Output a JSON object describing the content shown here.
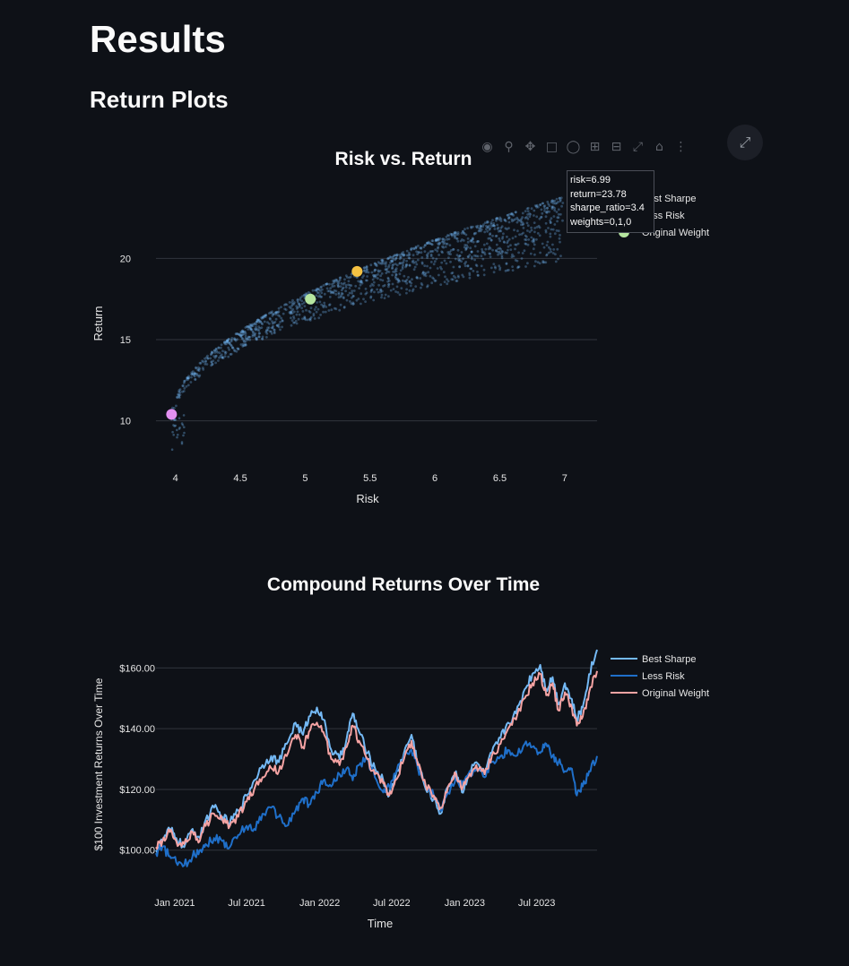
{
  "page": {
    "title": "Results",
    "subtitle": "Return Plots"
  },
  "modebar": {
    "icons": [
      "camera-icon",
      "zoom-icon",
      "pan-icon",
      "box-select-icon",
      "lasso-icon",
      "zoom-in-icon",
      "zoom-out-icon",
      "autoscale-icon",
      "home-icon",
      "plotly-logo-icon"
    ],
    "fullscreen_icon": "fullscreen-icon"
  },
  "tooltip": {
    "lines": [
      "risk=6.99",
      "return=23.78",
      "sharpe_ratio=3.4",
      "weights=0,1,0"
    ]
  },
  "chart_data": [
    {
      "type": "scatter",
      "title": "Risk vs. Return",
      "xlabel": "Risk",
      "ylabel": "Return",
      "xlim": [
        3.85,
        7.25
      ],
      "ylim": [
        7.5,
        24.6
      ],
      "xticks": [
        4,
        4.5,
        5,
        5.5,
        6,
        6.5,
        7
      ],
      "xtick_labels": [
        "4",
        "4.5",
        "5",
        "5.5",
        "6",
        "6.5",
        "7"
      ],
      "yticks": [
        10,
        15,
        20
      ],
      "ytick_labels": [
        "10",
        "15",
        "20"
      ],
      "grid": "horizontal",
      "legend_position": "top-right",
      "cloud_color": "#74b9f5",
      "cloud_description_points": {
        "frontier": [
          [
            3.98,
            10.4
          ],
          [
            4.1,
            12.3
          ],
          [
            4.3,
            13.8
          ],
          [
            4.6,
            15.3
          ],
          [
            5.0,
            17.3
          ],
          [
            5.4,
            19.2
          ],
          [
            5.8,
            20.6
          ],
          [
            6.2,
            21.7
          ],
          [
            6.6,
            22.9
          ],
          [
            6.99,
            23.78
          ]
        ]
      },
      "series": [
        {
          "name": "Best Sharpe",
          "color": "#f5c242",
          "points": [
            [
              5.4,
              19.2
            ]
          ]
        },
        {
          "name": "Less Risk",
          "color": "#e28ff0",
          "points": [
            [
              3.97,
              10.4
            ]
          ]
        },
        {
          "name": "Original Weight",
          "color": "#b6e6a0",
          "points": [
            [
              5.04,
              17.5
            ]
          ]
        }
      ]
    },
    {
      "type": "line",
      "title": "Compound Returns Over Time",
      "xlabel": "Time",
      "ylabel": "$100 Investment Returns Over Time",
      "x_range": [
        "2020-11-15",
        "2023-11-30"
      ],
      "xtick_labels": [
        "Jan 2021",
        "Jul 2021",
        "Jan 2022",
        "Jul 2022",
        "Jan 2023",
        "Jul 2023"
      ],
      "xtick_dates": [
        "2021-01-01",
        "2021-07-01",
        "2022-01-01",
        "2022-07-01",
        "2023-01-01",
        "2023-07-01"
      ],
      "ylim": [
        89,
        167.5
      ],
      "yticks": [
        100,
        120,
        140,
        160
      ],
      "ytick_labels": [
        "$100.00",
        "$120.00",
        "$140.00",
        "$160.00"
      ],
      "grid": "horizontal",
      "legend_position": "top-right",
      "series": [
        {
          "name": "Best Sharpe",
          "color": "#74b9f5",
          "points": [
            [
              "2020-11-15",
              100
            ],
            [
              "2020-12-01",
              103
            ],
            [
              "2020-12-20",
              107
            ],
            [
              "2021-01-05",
              104
            ],
            [
              "2021-01-25",
              101
            ],
            [
              "2021-02-15",
              107
            ],
            [
              "2021-03-05",
              104
            ],
            [
              "2021-03-20",
              110
            ],
            [
              "2021-04-10",
              114
            ],
            [
              "2021-05-01",
              111
            ],
            [
              "2021-05-20",
              109
            ],
            [
              "2021-06-10",
              113
            ],
            [
              "2021-07-01",
              118
            ],
            [
              "2021-07-20",
              123
            ],
            [
              "2021-08-10",
              128
            ],
            [
              "2021-09-01",
              131
            ],
            [
              "2021-09-20",
              129
            ],
            [
              "2021-10-10",
              135
            ],
            [
              "2021-11-01",
              142
            ],
            [
              "2021-11-20",
              138
            ],
            [
              "2021-12-05",
              144
            ],
            [
              "2021-12-25",
              147
            ],
            [
              "2022-01-10",
              143
            ],
            [
              "2022-01-30",
              133
            ],
            [
              "2022-02-20",
              130
            ],
            [
              "2022-03-10",
              137
            ],
            [
              "2022-03-25",
              145
            ],
            [
              "2022-04-10",
              139
            ],
            [
              "2022-05-01",
              132
            ],
            [
              "2022-05-20",
              127
            ],
            [
              "2022-06-10",
              123
            ],
            [
              "2022-06-25",
              118
            ],
            [
              "2022-07-10",
              124
            ],
            [
              "2022-08-01",
              132
            ],
            [
              "2022-08-20",
              138
            ],
            [
              "2022-09-05",
              129
            ],
            [
              "2022-09-25",
              120
            ],
            [
              "2022-10-15",
              117
            ],
            [
              "2022-11-01",
              112
            ],
            [
              "2022-11-20",
              121
            ],
            [
              "2022-12-10",
              126
            ],
            [
              "2022-12-25",
              119
            ],
            [
              "2023-01-10",
              125
            ],
            [
              "2023-01-30",
              129
            ],
            [
              "2023-02-20",
              125
            ],
            [
              "2023-03-10",
              132
            ],
            [
              "2023-04-01",
              137
            ],
            [
              "2023-04-20",
              142
            ],
            [
              "2023-05-10",
              145
            ],
            [
              "2023-06-01",
              153
            ],
            [
              "2023-06-20",
              158
            ],
            [
              "2023-07-10",
              161
            ],
            [
              "2023-07-25",
              153
            ],
            [
              "2023-08-10",
              157
            ],
            [
              "2023-08-25",
              148
            ],
            [
              "2023-09-10",
              155
            ],
            [
              "2023-09-25",
              150
            ],
            [
              "2023-10-10",
              143
            ],
            [
              "2023-10-25",
              147
            ],
            [
              "2023-11-10",
              158
            ],
            [
              "2023-11-30",
              166
            ]
          ]
        },
        {
          "name": "Less Risk",
          "color": "#1f6fc9",
          "points": [
            [
              "2020-11-15",
              99
            ],
            [
              "2020-12-01",
              101
            ],
            [
              "2020-12-20",
              98
            ],
            [
              "2021-01-05",
              96
            ],
            [
              "2021-01-25",
              95
            ],
            [
              "2021-02-15",
              98
            ],
            [
              "2021-03-05",
              100
            ],
            [
              "2021-03-20",
              102
            ],
            [
              "2021-04-10",
              104
            ],
            [
              "2021-05-01",
              103
            ],
            [
              "2021-05-20",
              101
            ],
            [
              "2021-06-10",
              105
            ],
            [
              "2021-07-01",
              108
            ],
            [
              "2021-07-20",
              107
            ],
            [
              "2021-08-10",
              112
            ],
            [
              "2021-09-01",
              114
            ],
            [
              "2021-09-20",
              111
            ],
            [
              "2021-10-10",
              108
            ],
            [
              "2021-11-01",
              113
            ],
            [
              "2021-11-20",
              117
            ],
            [
              "2021-12-05",
              115
            ],
            [
              "2021-12-25",
              119
            ],
            [
              "2022-01-10",
              123
            ],
            [
              "2022-01-30",
              121
            ],
            [
              "2022-02-20",
              125
            ],
            [
              "2022-03-10",
              127
            ],
            [
              "2022-03-25",
              123
            ],
            [
              "2022-04-10",
              128
            ],
            [
              "2022-05-01",
              130
            ],
            [
              "2022-05-20",
              124
            ],
            [
              "2022-06-10",
              119
            ],
            [
              "2022-06-25",
              121
            ],
            [
              "2022-07-10",
              125
            ],
            [
              "2022-08-01",
              131
            ],
            [
              "2022-08-20",
              133
            ],
            [
              "2022-09-05",
              127
            ],
            [
              "2022-09-25",
              121
            ],
            [
              "2022-10-15",
              118
            ],
            [
              "2022-11-01",
              113
            ],
            [
              "2022-11-20",
              119
            ],
            [
              "2022-12-10",
              124
            ],
            [
              "2022-12-25",
              121
            ],
            [
              "2023-01-10",
              125
            ],
            [
              "2023-01-30",
              127
            ],
            [
              "2023-02-20",
              124
            ],
            [
              "2023-03-10",
              129
            ],
            [
              "2023-04-01",
              131
            ],
            [
              "2023-04-20",
              133
            ],
            [
              "2023-05-10",
              131
            ],
            [
              "2023-06-01",
              135
            ],
            [
              "2023-06-20",
              134
            ],
            [
              "2023-07-10",
              132
            ],
            [
              "2023-07-25",
              135
            ],
            [
              "2023-08-10",
              131
            ],
            [
              "2023-08-25",
              129
            ],
            [
              "2023-09-10",
              126
            ],
            [
              "2023-09-25",
              127
            ],
            [
              "2023-10-10",
              118
            ],
            [
              "2023-10-25",
              121
            ],
            [
              "2023-11-10",
              126
            ],
            [
              "2023-11-30",
              131
            ]
          ]
        },
        {
          "name": "Original Weight",
          "color": "#f5a3a3",
          "points": [
            [
              "2020-11-15",
              101
            ],
            [
              "2020-12-01",
              103
            ],
            [
              "2020-12-20",
              106
            ],
            [
              "2021-01-05",
              103
            ],
            [
              "2021-01-25",
              102
            ],
            [
              "2021-02-15",
              106
            ],
            [
              "2021-03-05",
              103
            ],
            [
              "2021-03-20",
              108
            ],
            [
              "2021-04-10",
              112
            ],
            [
              "2021-05-01",
              110
            ],
            [
              "2021-05-20",
              108
            ],
            [
              "2021-06-10",
              111
            ],
            [
              "2021-07-01",
              116
            ],
            [
              "2021-07-20",
              120
            ],
            [
              "2021-08-10",
              124
            ],
            [
              "2021-09-01",
              127
            ],
            [
              "2021-09-20",
              126
            ],
            [
              "2021-10-10",
              131
            ],
            [
              "2021-11-01",
              138
            ],
            [
              "2021-11-20",
              134
            ],
            [
              "2021-12-05",
              139
            ],
            [
              "2021-12-25",
              142
            ],
            [
              "2022-01-10",
              139
            ],
            [
              "2022-01-30",
              130
            ],
            [
              "2022-02-20",
              128
            ],
            [
              "2022-03-10",
              134
            ],
            [
              "2022-03-25",
              141
            ],
            [
              "2022-04-10",
              136
            ],
            [
              "2022-05-01",
              130
            ],
            [
              "2022-05-20",
              125
            ],
            [
              "2022-06-10",
              122
            ],
            [
              "2022-06-25",
              118
            ],
            [
              "2022-07-10",
              123
            ],
            [
              "2022-08-01",
              130
            ],
            [
              "2022-08-20",
              136
            ],
            [
              "2022-09-05",
              128
            ],
            [
              "2022-09-25",
              121
            ],
            [
              "2022-10-15",
              118
            ],
            [
              "2022-11-01",
              114
            ],
            [
              "2022-11-20",
              121
            ],
            [
              "2022-12-10",
              125
            ],
            [
              "2022-12-25",
              120
            ],
            [
              "2023-01-10",
              124
            ],
            [
              "2023-01-30",
              128
            ],
            [
              "2023-02-20",
              125
            ],
            [
              "2023-03-10",
              131
            ],
            [
              "2023-04-01",
              135
            ],
            [
              "2023-04-20",
              140
            ],
            [
              "2023-05-10",
              143
            ],
            [
              "2023-06-01",
              150
            ],
            [
              "2023-06-20",
              155
            ],
            [
              "2023-07-10",
              158
            ],
            [
              "2023-07-25",
              151
            ],
            [
              "2023-08-10",
              155
            ],
            [
              "2023-08-25",
              146
            ],
            [
              "2023-09-10",
              152
            ],
            [
              "2023-09-25",
              148
            ],
            [
              "2023-10-10",
              141
            ],
            [
              "2023-10-25",
              144
            ],
            [
              "2023-11-10",
              152
            ],
            [
              "2023-11-30",
              159
            ]
          ]
        }
      ]
    }
  ]
}
